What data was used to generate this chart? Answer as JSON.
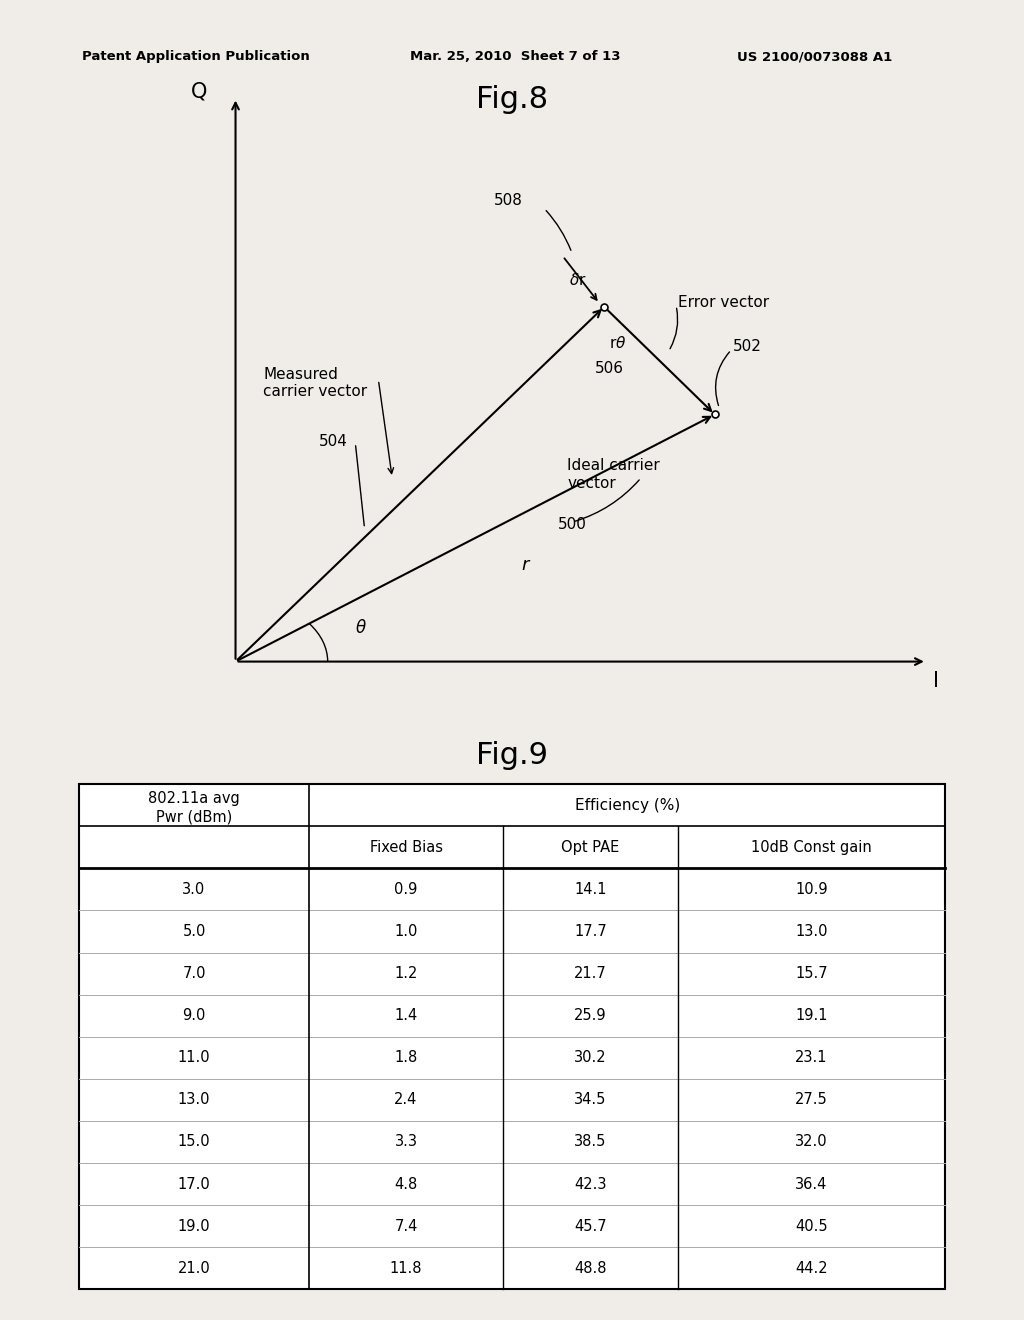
{
  "header_text_left": "Patent Application Publication",
  "header_text_mid": "Mar. 25, 2010  Sheet 7 of 13",
  "header_text_right": "US 2100/0073088 A1",
  "fig8_title": "Fig.8",
  "fig9_title": "Fig.9",
  "bg_color": "#f0ede8",
  "table_data": [
    [
      "3.0",
      "0.9",
      "14.1",
      "10.9"
    ],
    [
      "5.0",
      "1.0",
      "17.7",
      "13.0"
    ],
    [
      "7.0",
      "1.2",
      "21.7",
      "15.7"
    ],
    [
      "9.0",
      "1.4",
      "25.9",
      "19.1"
    ],
    [
      "11.0",
      "1.8",
      "30.2",
      "23.1"
    ],
    [
      "13.0",
      "2.4",
      "34.5",
      "27.5"
    ],
    [
      "15.0",
      "3.3",
      "38.5",
      "32.0"
    ],
    [
      "17.0",
      "4.8",
      "42.3",
      "36.4"
    ],
    [
      "19.0",
      "7.4",
      "45.7",
      "40.5"
    ],
    [
      "21.0",
      "11.8",
      "48.8",
      "44.2"
    ]
  ]
}
